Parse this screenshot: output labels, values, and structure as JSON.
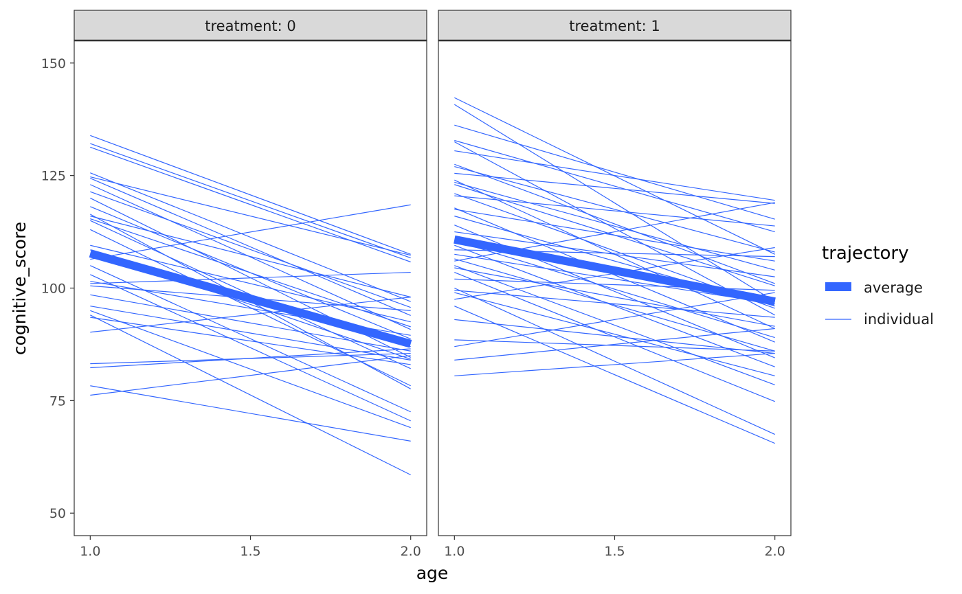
{
  "chart_data": {
    "type": "line",
    "xlabel": "age",
    "ylabel": "cognitive_score",
    "xlim": [
      0.95,
      2.05
    ],
    "ylim": [
      45,
      155
    ],
    "x_ticks": [
      "1.0",
      "1.5",
      "2.0"
    ],
    "y_ticks": [
      "50",
      "75",
      "100",
      "125",
      "150"
    ],
    "grid": false,
    "legend": {
      "title": "trajectory",
      "position": "right",
      "entries": [
        "average",
        "individual"
      ]
    },
    "color": "#3366FF",
    "panels": [
      {
        "strip": "treatment: 0",
        "average": {
          "x": [
            1.0,
            2.0
          ],
          "y": [
            107.7,
            87.6
          ]
        },
        "individual": [
          [
            133.9,
            107.5
          ],
          [
            132.1,
            106.7
          ],
          [
            131.3,
            105.8
          ],
          [
            125.6,
            97.0
          ],
          [
            124.7,
            107.3
          ],
          [
            124.4,
            93.9
          ],
          [
            123.0,
            90.8
          ],
          [
            121.4,
            95.7
          ],
          [
            120.0,
            84.6
          ],
          [
            118.1,
            88.7
          ],
          [
            116.4,
            77.6
          ],
          [
            116.0,
            98.0
          ],
          [
            115.4,
            91.4
          ],
          [
            115.0,
            82.1
          ],
          [
            113.0,
            78.3
          ],
          [
            109.5,
            92.5
          ],
          [
            108.5,
            84.2
          ],
          [
            107.5,
            87.0
          ],
          [
            106.4,
            118.5
          ],
          [
            105.0,
            72.5
          ],
          [
            103.0,
            70.5
          ],
          [
            101.5,
            89.5
          ],
          [
            101.0,
            103.5
          ],
          [
            100.5,
            95.0
          ],
          [
            98.5,
            86.0
          ],
          [
            96.0,
            84.0
          ],
          [
            95.0,
            69.0
          ],
          [
            94.0,
            58.5
          ],
          [
            93.5,
            83.0
          ],
          [
            90.2,
            98.0
          ],
          [
            83.2,
            85.5
          ],
          [
            82.3,
            86.5
          ],
          [
            78.3,
            66.0
          ],
          [
            76.2,
            85.0
          ]
        ]
      },
      {
        "strip": "treatment: 1",
        "average": {
          "x": [
            1.0,
            2.0
          ],
          "y": [
            110.8,
            97.0
          ]
        },
        "individual": [
          [
            142.3,
            107.5
          ],
          [
            140.8,
            97.0
          ],
          [
            136.2,
            115.3
          ],
          [
            132.8,
            112.5
          ],
          [
            132.5,
            94.0
          ],
          [
            130.5,
            119.5
          ],
          [
            127.5,
            101.0
          ],
          [
            127.0,
            108.0
          ],
          [
            125.5,
            118.8
          ],
          [
            124.0,
            91.0
          ],
          [
            123.5,
            104.0
          ],
          [
            123.0,
            100.5
          ],
          [
            121.0,
            95.5
          ],
          [
            120.5,
            113.8
          ],
          [
            117.8,
            88.0
          ],
          [
            117.5,
            106.0
          ],
          [
            116.0,
            96.0
          ],
          [
            114.0,
            84.5
          ],
          [
            112.5,
            102.5
          ],
          [
            110.5,
            89.0
          ],
          [
            109.5,
            82.5
          ],
          [
            108.5,
            107.0
          ],
          [
            107.5,
            96.5
          ],
          [
            106.5,
            86.0
          ],
          [
            106.0,
            119.0
          ],
          [
            105.0,
            78.5
          ],
          [
            104.5,
            91.5
          ],
          [
            103.5,
            74.8
          ],
          [
            102.0,
            99.5
          ],
          [
            100.0,
            67.5
          ],
          [
            99.5,
            93.5
          ],
          [
            99.0,
            80.5
          ],
          [
            97.5,
            109.0
          ],
          [
            96.0,
            65.5
          ],
          [
            93.0,
            85.5
          ],
          [
            88.5,
            86.0
          ],
          [
            87.0,
            99.0
          ],
          [
            84.0,
            91.0
          ],
          [
            80.5,
            85.5
          ]
        ]
      }
    ]
  }
}
